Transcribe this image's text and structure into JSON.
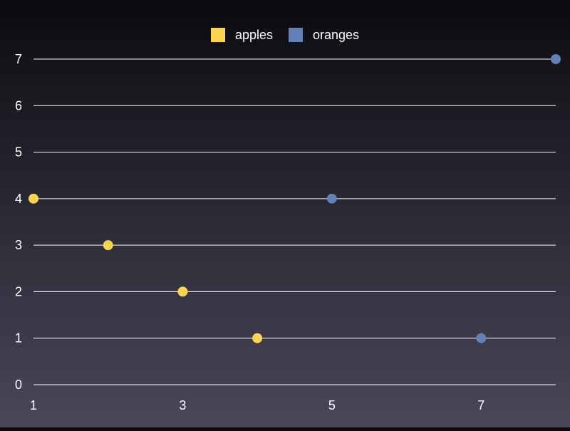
{
  "chart_data": {
    "type": "scatter",
    "title": "",
    "xlabel": "",
    "ylabel": "",
    "xlim": [
      1,
      8
    ],
    "ylim": [
      0,
      7
    ],
    "x_ticks": [
      1,
      3,
      5,
      7
    ],
    "y_ticks": [
      0,
      1,
      2,
      3,
      4,
      5,
      6,
      7
    ],
    "grid": "horizontal",
    "legend_position": "top-center",
    "series": [
      {
        "name": "apples",
        "color": "#ffd54f",
        "points": [
          {
            "x": 1,
            "y": 4
          },
          {
            "x": 2,
            "y": 3
          },
          {
            "x": 3,
            "y": 2
          },
          {
            "x": 4,
            "y": 1
          }
        ]
      },
      {
        "name": "oranges",
        "color": "#6181b8",
        "points": [
          {
            "x": 5,
            "y": 4
          },
          {
            "x": 7,
            "y": 1
          },
          {
            "x": 8,
            "y": 7
          }
        ]
      }
    ]
  }
}
